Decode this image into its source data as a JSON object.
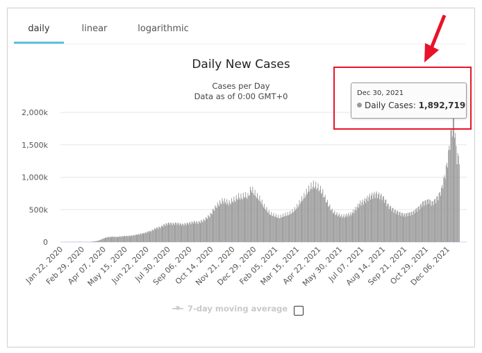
{
  "tabs": [
    {
      "label": "daily",
      "active": true
    },
    {
      "label": "linear",
      "active": false
    },
    {
      "label": "logarithmic",
      "active": false
    }
  ],
  "legend": {
    "label": "7-day moving average",
    "checked": false
  },
  "tooltip": {
    "date": "Dec 30, 2021",
    "series": "Daily Cases",
    "value": "1,892,719"
  },
  "annotation": {
    "color": "#e8132a"
  },
  "chart_data": {
    "type": "bar",
    "title": "Daily New Cases",
    "subtitle": [
      "Cases per Day",
      "Data as of 0:00 GMT+0"
    ],
    "xlabel": "",
    "ylabel": "",
    "ylim": [
      0,
      2000000
    ],
    "yticks": [
      0,
      500000,
      1000000,
      1500000,
      2000000
    ],
    "ytick_labels": [
      "0",
      "500k",
      "1,000k",
      "1,500k",
      "2,000k"
    ],
    "xtick_labels": [
      "Jan 22, 2020",
      "Feb 29, 2020",
      "Apr 07, 2020",
      "May 15, 2020",
      "Jun 22, 2020",
      "Jul 30, 2020",
      "Sep 06, 2020",
      "Oct 14, 2020",
      "Nov 21, 2020",
      "Dec 29, 2020",
      "Feb 05, 2021",
      "Mar 15, 2021",
      "Apr 22, 2021",
      "May 30, 2021",
      "Jul 07, 2021",
      "Aug 14, 2021",
      "Sep 21, 2021",
      "Oct 29, 2021",
      "Dec 06, 2021"
    ],
    "bar_color": "#999999",
    "grid": true,
    "series": [
      {
        "name": "Daily Cases",
        "start_date": "2020-01-22",
        "end_date": "2022-01-03",
        "values_every_4_days": [
          1000,
          1000,
          2000,
          2000,
          2000,
          2000,
          3000,
          2000,
          2000,
          2000,
          5000,
          12000,
          20000,
          40000,
          62000,
          75000,
          80000,
          82000,
          78000,
          85000,
          90000,
          92000,
          95000,
          100000,
          110000,
          120000,
          130000,
          140000,
          160000,
          170000,
          200000,
          220000,
          230000,
          260000,
          280000,
          290000,
          280000,
          290000,
          280000,
          270000,
          280000,
          290000,
          300000,
          310000,
          300000,
          320000,
          340000,
          380000,
          420000,
          500000,
          560000,
          600000,
          640000,
          620000,
          600000,
          640000,
          660000,
          700000,
          690000,
          720000,
          700000,
          820000,
          760000,
          700000,
          650000,
          560000,
          500000,
          440000,
          420000,
          400000,
          380000,
          400000,
          420000,
          430000,
          460000,
          500000,
          560000,
          640000,
          700000,
          780000,
          840000,
          880000,
          860000,
          820000,
          760000,
          650000,
          560000,
          480000,
          440000,
          420000,
          400000,
          400000,
          420000,
          430000,
          480000,
          540000,
          600000,
          620000,
          660000,
          700000,
          720000,
          740000,
          720000,
          700000,
          640000,
          560000,
          520000,
          480000,
          460000,
          440000,
          420000,
          430000,
          440000,
          460000,
          500000,
          540000,
          600000,
          620000,
          640000,
          600000,
          640000,
          700000,
          800000,
          1000000,
          1250000,
          1640000,
          1892719,
          1300000
        ]
      }
    ]
  }
}
